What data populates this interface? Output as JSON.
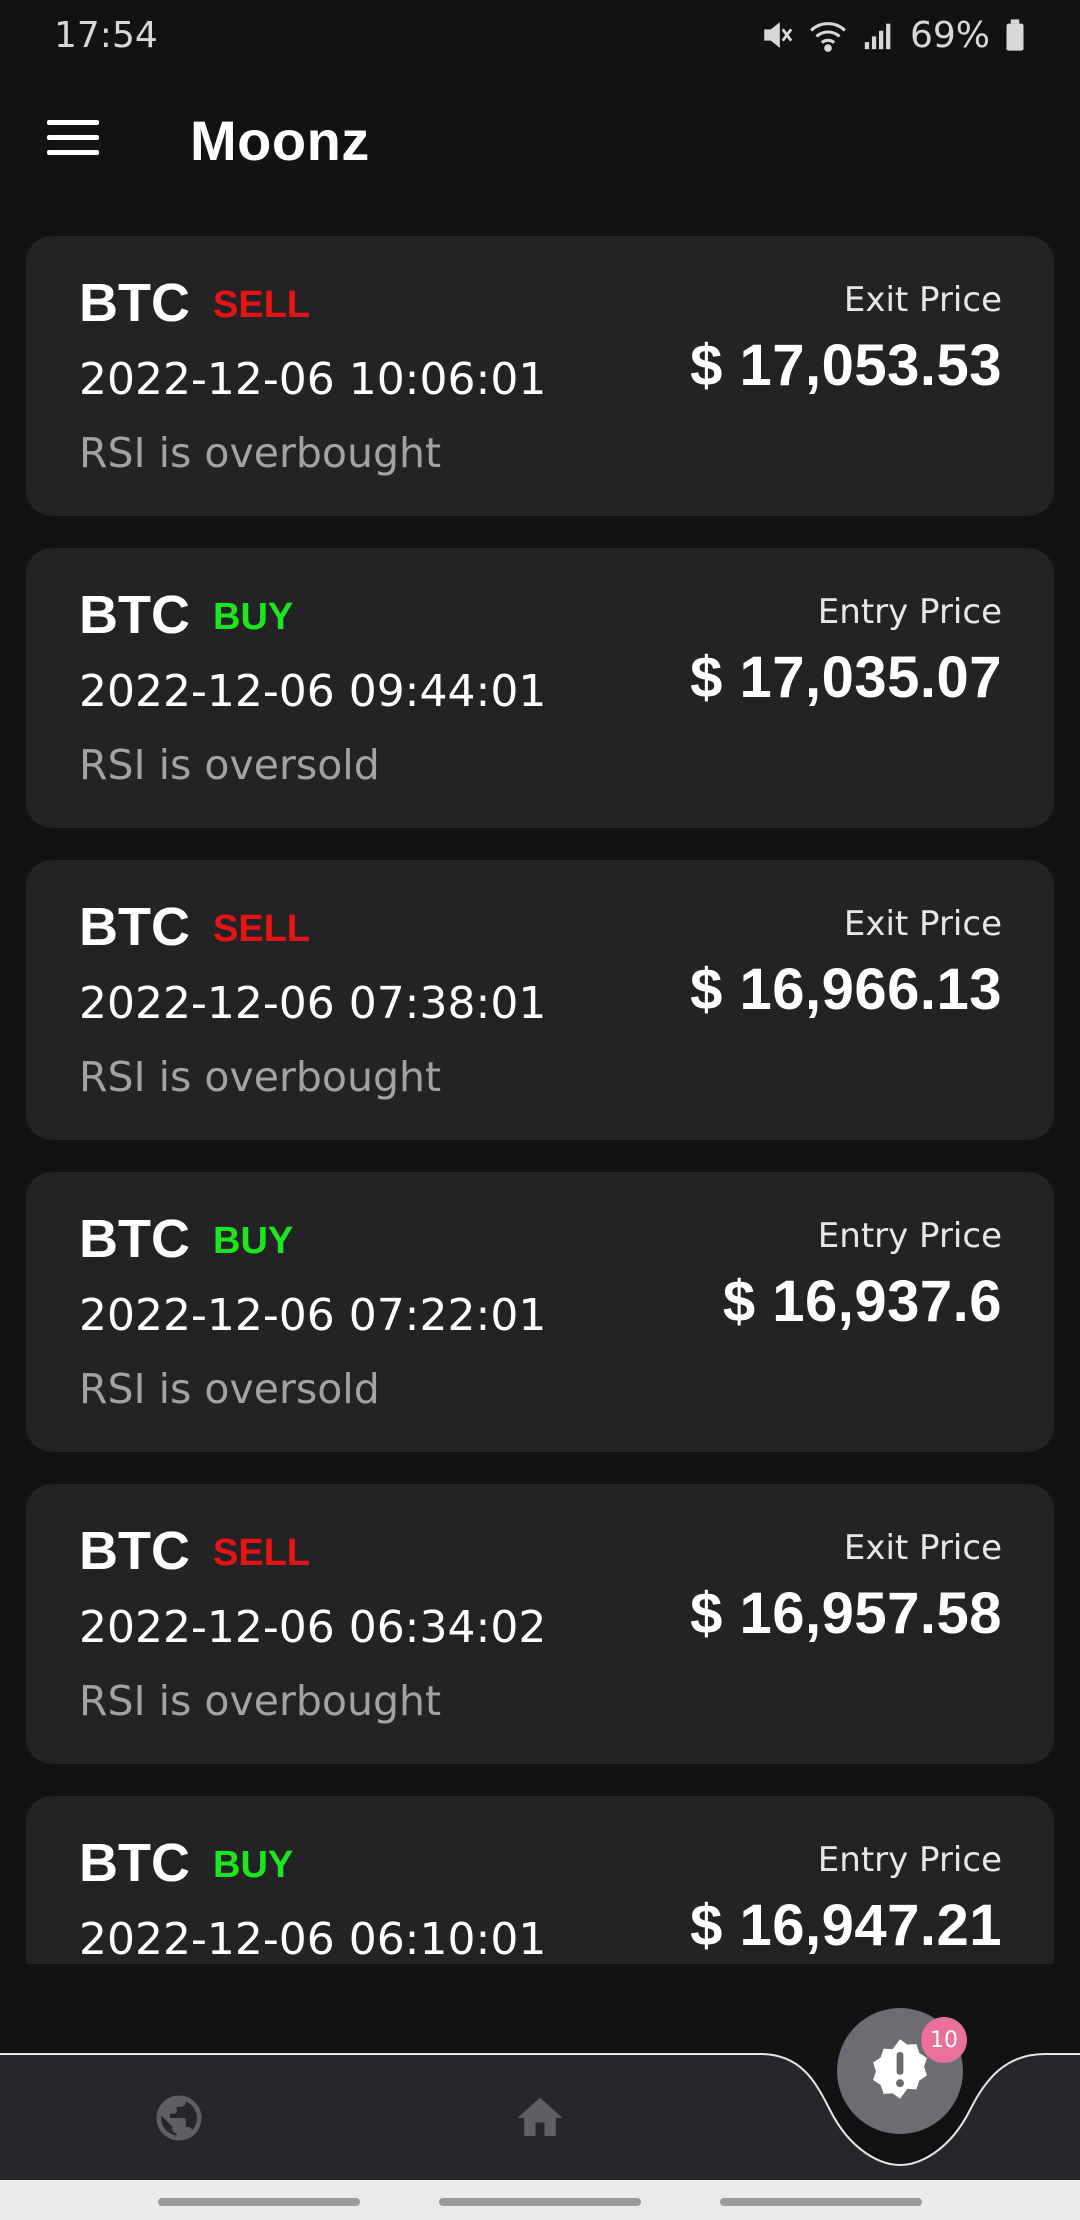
{
  "status_bar": {
    "time": "17:54",
    "battery": "69%",
    "icons": [
      "mute-icon",
      "wifi-icon",
      "signal-icon",
      "battery-icon"
    ]
  },
  "app_bar": {
    "title": "Moonz",
    "menu_icon": "hamburger-menu-icon"
  },
  "colors": {
    "background": "#121213",
    "card": "#232325",
    "sell": "#e81414",
    "buy": "#1ee61e",
    "muted_text": "#a3a3a6",
    "badge": "#ea6f9a"
  },
  "signals": [
    {
      "symbol": "BTC",
      "action": "SELL",
      "time": "2022-12-06 10:06:01",
      "reason": "RSI is overbought",
      "price_label": "Exit Price",
      "price": "$ 17,053.53"
    },
    {
      "symbol": "BTC",
      "action": "BUY",
      "time": "2022-12-06 09:44:01",
      "reason": "RSI is oversold",
      "price_label": "Entry Price",
      "price": "$ 17,035.07"
    },
    {
      "symbol": "BTC",
      "action": "SELL",
      "time": "2022-12-06 07:38:01",
      "reason": "RSI is overbought",
      "price_label": "Exit Price",
      "price": "$ 16,966.13"
    },
    {
      "symbol": "BTC",
      "action": "BUY",
      "time": "2022-12-06 07:22:01",
      "reason": "RSI is oversold",
      "price_label": "Entry Price",
      "price": "$ 16,937.6"
    },
    {
      "symbol": "BTC",
      "action": "SELL",
      "time": "2022-12-06 06:34:02",
      "reason": "RSI is overbought",
      "price_label": "Exit Price",
      "price": "$ 16,957.58"
    },
    {
      "symbol": "BTC",
      "action": "BUY",
      "time": "2022-12-06 06:10:01",
      "reason": "",
      "price_label": "Entry Price",
      "price": "$ 16,947.21"
    }
  ],
  "bottom_nav": {
    "items": [
      {
        "icon": "globe-icon"
      },
      {
        "icon": "home-icon"
      }
    ],
    "fab_icon": "alert-badge-icon",
    "fab_badge_count": "10"
  }
}
